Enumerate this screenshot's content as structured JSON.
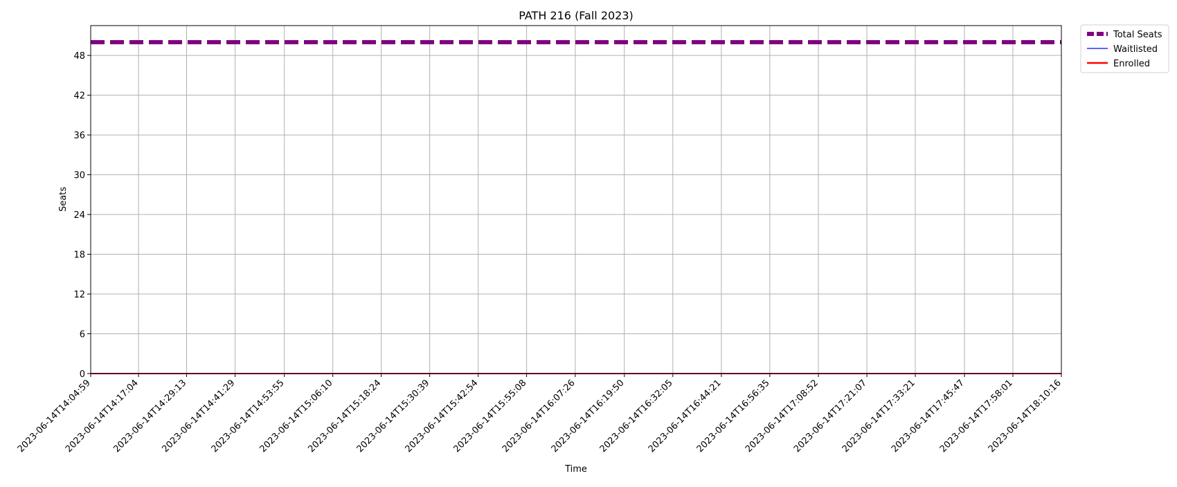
{
  "chart_data": {
    "type": "line",
    "title": "PATH 216 (Fall 2023)",
    "xlabel": "Time",
    "ylabel": "Seats",
    "ylim": [
      0,
      52.5
    ],
    "yticks": [
      0,
      6,
      12,
      18,
      24,
      30,
      36,
      42,
      48
    ],
    "grid": true,
    "legend_position": "outside-top-right",
    "x": [
      "2023-06-14T14:04:59",
      "2023-06-14T14:17:04",
      "2023-06-14T14:29:13",
      "2023-06-14T14:41:29",
      "2023-06-14T14:53:55",
      "2023-06-14T15:06:10",
      "2023-06-14T15:18:24",
      "2023-06-14T15:30:39",
      "2023-06-14T15:42:54",
      "2023-06-14T15:55:08",
      "2023-06-14T16:07:26",
      "2023-06-14T16:19:50",
      "2023-06-14T16:32:05",
      "2023-06-14T16:44:21",
      "2023-06-14T16:56:35",
      "2023-06-14T17:08:52",
      "2023-06-14T17:21:07",
      "2023-06-14T17:33:21",
      "2023-06-14T17:45:47",
      "2023-06-14T17:58:01",
      "2023-06-14T18:10:16"
    ],
    "series": [
      {
        "name": "Total Seats",
        "color": "#800080",
        "style": "dashed",
        "values": [
          50,
          50,
          50,
          50,
          50,
          50,
          50,
          50,
          50,
          50,
          50,
          50,
          50,
          50,
          50,
          50,
          50,
          50,
          50,
          50,
          50
        ]
      },
      {
        "name": "Waitlisted",
        "color": "#0000ff",
        "style": "solid",
        "values": [
          0,
          0,
          0,
          0,
          0,
          0,
          0,
          0,
          0,
          0,
          0,
          0,
          0,
          0,
          0,
          0,
          0,
          0,
          0,
          0,
          0
        ]
      },
      {
        "name": "Enrolled",
        "color": "#ff0000",
        "style": "solid",
        "values": [
          0,
          0,
          0,
          0,
          0,
          0,
          0,
          0,
          0,
          0,
          0,
          0,
          0,
          0,
          0,
          0,
          0,
          0,
          0,
          0,
          0
        ]
      }
    ]
  }
}
